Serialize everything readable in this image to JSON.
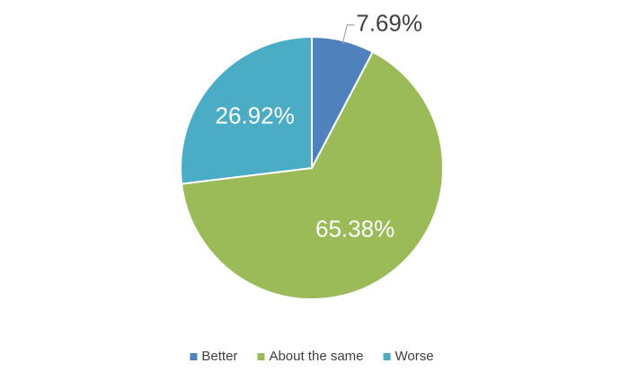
{
  "chart_data": {
    "type": "pie",
    "categories": [
      "Better",
      "About the same",
      "Worse"
    ],
    "values": [
      7.69,
      65.38,
      26.92
    ],
    "value_labels": [
      "7.69%",
      "65.38%",
      "26.92%"
    ],
    "colors": [
      "#4f81bd",
      "#9bbb59",
      "#4bacc6"
    ],
    "legend": "bottom"
  }
}
